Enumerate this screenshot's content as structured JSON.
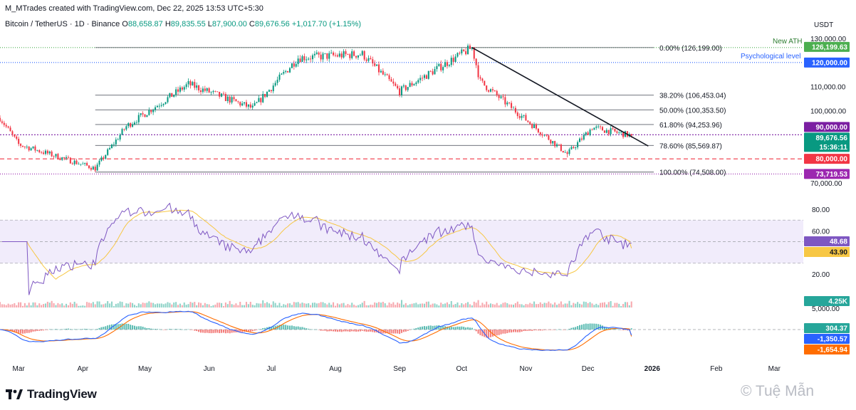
{
  "header": {
    "created_line": "M_MTrades created with TradingView.com, Dec 22, 2025 13:53 UTC+5:30",
    "symbol": "Bitcoin / TetherUS · 1D · Binance",
    "o_label": "O",
    "o_value": "88,658.87",
    "h_label": "H",
    "h_value": "89,835.55",
    "l_label": "L",
    "l_value": "87,900.00",
    "c_label": "C",
    "c_value": "89,676.56",
    "change": "+1,017.70 (+1.15%)"
  },
  "axis": {
    "currency": "USDT",
    "price_ticks": [
      "130,000.00",
      "110,000.00",
      "100,000.00",
      "70,000.00"
    ],
    "rsi_ticks": [
      "80.00",
      "60.00",
      "20.00"
    ],
    "volume_tick": "5,000.00",
    "time_labels": [
      "Mar",
      "Apr",
      "May",
      "Jun",
      "Jul",
      "Aug",
      "Sep",
      "Oct",
      "Nov",
      "Dec",
      "2026",
      "Feb",
      "Mar"
    ]
  },
  "price_badges": [
    {
      "text": "126,199.63",
      "color": "#4caf50",
      "price": 126199.63
    },
    {
      "text": "120,000.00",
      "color": "#2962ff",
      "price": 120000
    },
    {
      "text": "90,000.00",
      "color": "#7b1fa2",
      "price": 90000
    },
    {
      "text": "89,676.56",
      "color": "#089981",
      "price": 89676.56
    },
    {
      "text": "15:36:11",
      "color": "#089981",
      "price": 86300
    },
    {
      "text": "80,000.00",
      "color": "#f23645",
      "price": 80000
    },
    {
      "text": "73,719.53",
      "color": "#9c27b0",
      "price": 73719.53
    }
  ],
  "annotations": {
    "new_ath": "New ATH",
    "psych": "Psychological level"
  },
  "fib_levels": [
    {
      "label": "0.00% (126,199.00)",
      "price": 126199
    },
    {
      "label": "38.20% (106,453.04)",
      "price": 106453.04
    },
    {
      "label": "50.00% (100,353.50)",
      "price": 100353.5
    },
    {
      "label": "61.80% (94,253.96)",
      "price": 94253.96
    },
    {
      "label": "78.60% (85,569.87)",
      "price": 85569.87
    },
    {
      "label": "100.00% (74,508.00)",
      "price": 74508
    }
  ],
  "indicator_badges": {
    "rsi": [
      "48.68",
      "43.90"
    ],
    "volume": "4.25K",
    "macd": [
      "304.37",
      "-1,350.57",
      "-1,654.94"
    ]
  },
  "branding": {
    "logo": "TradingView",
    "watermark": "© Tuệ Mẫn"
  },
  "colors": {
    "up": "#089981",
    "down": "#f23645",
    "rsi": "#7e57c2",
    "rsi_ma": "#f7c744",
    "macd": "#2962ff",
    "signal": "#ff6d00"
  },
  "chart_data": {
    "type": "candlestick",
    "symbol": "BTC/USDT",
    "interval": "1D",
    "x_range": [
      "2025-02-20",
      "2026-03-15"
    ],
    "price_range": [
      68000,
      132000
    ],
    "monthly_path": [
      {
        "date": "2025-02-20",
        "close": 97000
      },
      {
        "date": "2025-03-01",
        "close": 86000
      },
      {
        "date": "2025-04-07",
        "close": 76000
      },
      {
        "date": "2025-04-22",
        "close": 93500
      },
      {
        "date": "2025-05-22",
        "close": 111000
      },
      {
        "date": "2025-06-22",
        "close": 101000
      },
      {
        "date": "2025-07-14",
        "close": 122000
      },
      {
        "date": "2025-08-14",
        "close": 123500
      },
      {
        "date": "2025-09-01",
        "close": 108000
      },
      {
        "date": "2025-10-06",
        "close": 126199
      },
      {
        "date": "2025-10-10",
        "close": 112000
      },
      {
        "date": "2025-11-21",
        "close": 82000
      },
      {
        "date": "2025-12-03",
        "close": 93000
      },
      {
        "date": "2025-12-22",
        "close": 89676.56
      }
    ],
    "trendline": [
      {
        "date": "2025-10-06",
        "price": 126199
      },
      {
        "date": "2025-12-26",
        "price": 86500
      }
    ],
    "horizontal_levels": [
      126199.63,
      120000,
      90000,
      80000,
      73719.53
    ],
    "rsi_range": [
      0,
      100
    ],
    "rsi_bands": [
      30,
      70
    ],
    "rsi_last": 48.68,
    "rsi_ma_last": 43.9,
    "volume_last": 4250,
    "macd_last": {
      "histogram": 304.37,
      "macd": -1350.57,
      "signal": -1654.94
    }
  }
}
